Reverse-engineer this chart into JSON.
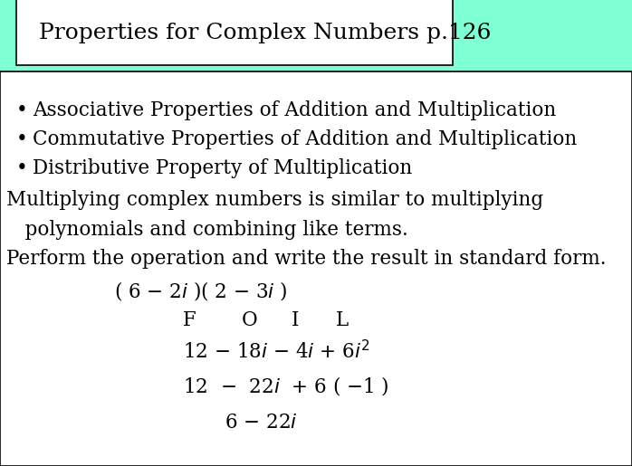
{
  "bg_color": "#7FFFD4",
  "box_bg": "#FFFFFF",
  "box_edge": "#000000",
  "title": "Properties for Complex Numbers p.126",
  "title_fontsize": 18,
  "content_fontsize": 15.5,
  "bullet1": "Associative Properties of Addition and Multiplication",
  "bullet2": "Commutative Properties of Addition and Multiplication",
  "bullet3": "Distributive Property of Multiplication",
  "line1": "Multiplying complex numbers is similar to multiplying",
  "line2": "   polynomials and combining like terms.",
  "line3": "Perform the operation and write the result in standard form.",
  "foil_line": "( 6 – 2$\\it{i}$ )( 2 – 3$\\it{i}$ )",
  "foil_letters": "F          O        I          L",
  "math_line1a": "12 – 18$\\it{i}$ – 4$\\it{i}$ + 6$\\it{i}^{2}$",
  "math_line2": "12  – 22i + 6 ( -1 )",
  "math_line3": "6 – 22$\\it{i}$"
}
